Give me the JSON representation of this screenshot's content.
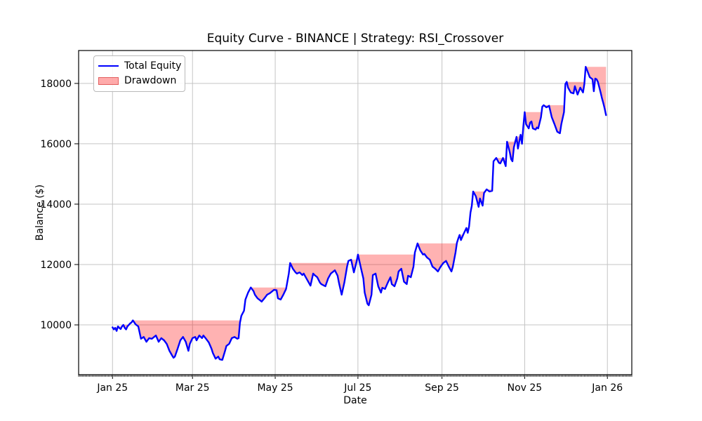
{
  "title": "Equity Curve - BINANCE | Strategy: RSI_Crossover",
  "legend": [
    {
      "label": "Total Equity",
      "type": "line",
      "color": "#0000ff"
    },
    {
      "label": "Drawdown",
      "type": "patch",
      "color": "rgba(255,0,0,0.33)"
    }
  ],
  "colors": {
    "equity_line": "#0000ff",
    "drawdown_fill": "rgba(255,0,0,0.3)",
    "grid": "#c4c4c4",
    "spine": "#000000",
    "text": "#000000"
  },
  "chart_data": {
    "type": "line",
    "title": "Equity Curve - BINANCE | Strategy: RSI_Crossover",
    "xlabel": "Date",
    "ylabel": "Balance ($)",
    "grid": true,
    "legend_position": "upper left",
    "x_unit": "days since Jan 1 2025",
    "xlim_days": [
      -25,
      383
    ],
    "ylim": [
      8350,
      19090
    ],
    "xticks": [
      {
        "day": 0,
        "label": "Jan 25"
      },
      {
        "day": 59,
        "label": "Mar 25"
      },
      {
        "day": 120,
        "label": "May 25"
      },
      {
        "day": 181,
        "label": "Jul 25"
      },
      {
        "day": 243,
        "label": "Sep 25"
      },
      {
        "day": 304,
        "label": "Nov 25"
      },
      {
        "day": 365,
        "label": "Jan 26"
      }
    ],
    "yticks": [
      10000,
      12000,
      14000,
      16000,
      18000
    ],
    "minor_xtick_every_days": 1,
    "series": [
      {
        "name": "Total Equity",
        "type": "line",
        "color": "#0000ff",
        "points": [
          [
            0,
            9920
          ],
          [
            1,
            9850
          ],
          [
            2,
            9900
          ],
          [
            3,
            9800
          ],
          [
            4,
            9950
          ],
          [
            5,
            9900
          ],
          [
            6,
            9860
          ],
          [
            7,
            9950
          ],
          [
            8,
            10000
          ],
          [
            9,
            9900
          ],
          [
            10,
            9850
          ],
          [
            11,
            9950
          ],
          [
            13,
            10050
          ],
          [
            14,
            10080
          ],
          [
            15,
            10150
          ],
          [
            17,
            10020
          ],
          [
            19,
            9950
          ],
          [
            21,
            9540
          ],
          [
            23,
            9600
          ],
          [
            25,
            9440
          ],
          [
            27,
            9560
          ],
          [
            29,
            9540
          ],
          [
            32,
            9650
          ],
          [
            34,
            9440
          ],
          [
            36,
            9560
          ],
          [
            38,
            9490
          ],
          [
            40,
            9370
          ],
          [
            42,
            9140
          ],
          [
            44,
            8980
          ],
          [
            45,
            8910
          ],
          [
            46,
            8950
          ],
          [
            48,
            9210
          ],
          [
            50,
            9490
          ],
          [
            52,
            9600
          ],
          [
            54,
            9440
          ],
          [
            56,
            9140
          ],
          [
            57,
            9370
          ],
          [
            59,
            9560
          ],
          [
            61,
            9600
          ],
          [
            62,
            9490
          ],
          [
            64,
            9650
          ],
          [
            66,
            9560
          ],
          [
            67,
            9650
          ],
          [
            69,
            9540
          ],
          [
            71,
            9420
          ],
          [
            73,
            9210
          ],
          [
            74,
            9070
          ],
          [
            76,
            8880
          ],
          [
            78,
            8950
          ],
          [
            79,
            8860
          ],
          [
            81,
            8840
          ],
          [
            83,
            9140
          ],
          [
            84,
            9300
          ],
          [
            86,
            9370
          ],
          [
            88,
            9560
          ],
          [
            90,
            9600
          ],
          [
            92,
            9540
          ],
          [
            93,
            9560
          ],
          [
            94,
            10070
          ],
          [
            95,
            10300
          ],
          [
            97,
            10470
          ],
          [
            98,
            10840
          ],
          [
            100,
            11070
          ],
          [
            102,
            11240
          ],
          [
            104,
            11120
          ],
          [
            105,
            11000
          ],
          [
            107,
            10880
          ],
          [
            109,
            10810
          ],
          [
            110,
            10770
          ],
          [
            112,
            10880
          ],
          [
            114,
            11000
          ],
          [
            116,
            11050
          ],
          [
            118,
            11120
          ],
          [
            119,
            11160
          ],
          [
            121,
            11150
          ],
          [
            122,
            10880
          ],
          [
            124,
            10840
          ],
          [
            126,
            11000
          ],
          [
            128,
            11190
          ],
          [
            130,
            11700
          ],
          [
            131,
            12050
          ],
          [
            133,
            11860
          ],
          [
            135,
            11740
          ],
          [
            136,
            11700
          ],
          [
            138,
            11740
          ],
          [
            140,
            11650
          ],
          [
            141,
            11700
          ],
          [
            143,
            11540
          ],
          [
            146,
            11300
          ],
          [
            148,
            11700
          ],
          [
            149,
            11650
          ],
          [
            151,
            11580
          ],
          [
            153,
            11400
          ],
          [
            154,
            11350
          ],
          [
            157,
            11280
          ],
          [
            159,
            11540
          ],
          [
            161,
            11700
          ],
          [
            164,
            11810
          ],
          [
            166,
            11630
          ],
          [
            167,
            11400
          ],
          [
            169,
            11000
          ],
          [
            171,
            11400
          ],
          [
            173,
            11930
          ],
          [
            174,
            12120
          ],
          [
            176,
            12160
          ],
          [
            178,
            11740
          ],
          [
            180,
            12090
          ],
          [
            181,
            12330
          ],
          [
            183,
            11930
          ],
          [
            185,
            11540
          ],
          [
            186,
            11070
          ],
          [
            188,
            10700
          ],
          [
            189,
            10650
          ],
          [
            191,
            11000
          ],
          [
            192,
            11650
          ],
          [
            194,
            11700
          ],
          [
            196,
            11280
          ],
          [
            198,
            11070
          ],
          [
            199,
            11230
          ],
          [
            201,
            11190
          ],
          [
            203,
            11400
          ],
          [
            205,
            11580
          ],
          [
            206,
            11350
          ],
          [
            208,
            11280
          ],
          [
            210,
            11540
          ],
          [
            211,
            11770
          ],
          [
            213,
            11860
          ],
          [
            215,
            11430
          ],
          [
            217,
            11350
          ],
          [
            218,
            11630
          ],
          [
            220,
            11580
          ],
          [
            222,
            11930
          ],
          [
            223,
            12400
          ],
          [
            225,
            12700
          ],
          [
            227,
            12470
          ],
          [
            229,
            12330
          ],
          [
            230,
            12350
          ],
          [
            232,
            12230
          ],
          [
            234,
            12160
          ],
          [
            236,
            11930
          ],
          [
            238,
            11860
          ],
          [
            240,
            11770
          ],
          [
            242,
            11930
          ],
          [
            244,
            12050
          ],
          [
            246,
            12120
          ],
          [
            248,
            11930
          ],
          [
            250,
            11770
          ],
          [
            251,
            11930
          ],
          [
            253,
            12400
          ],
          [
            254,
            12720
          ],
          [
            255,
            12860
          ],
          [
            256,
            12980
          ],
          [
            257,
            12810
          ],
          [
            259,
            13020
          ],
          [
            261,
            13210
          ],
          [
            262,
            13050
          ],
          [
            263,
            13260
          ],
          [
            264,
            13720
          ],
          [
            265,
            13950
          ],
          [
            266,
            14420
          ],
          [
            268,
            14260
          ],
          [
            270,
            13910
          ],
          [
            271,
            14190
          ],
          [
            273,
            13950
          ],
          [
            274,
            14370
          ],
          [
            276,
            14490
          ],
          [
            278,
            14420
          ],
          [
            280,
            14440
          ],
          [
            281,
            15420
          ],
          [
            283,
            15530
          ],
          [
            285,
            15370
          ],
          [
            286,
            15350
          ],
          [
            288,
            15530
          ],
          [
            290,
            15260
          ],
          [
            291,
            16070
          ],
          [
            293,
            15720
          ],
          [
            294,
            15490
          ],
          [
            295,
            15420
          ],
          [
            296,
            15880
          ],
          [
            298,
            16230
          ],
          [
            299,
            15840
          ],
          [
            301,
            16300
          ],
          [
            302,
            16000
          ],
          [
            303,
            16580
          ],
          [
            304,
            17050
          ],
          [
            305,
            16650
          ],
          [
            307,
            16510
          ],
          [
            308,
            16700
          ],
          [
            309,
            16740
          ],
          [
            310,
            16510
          ],
          [
            312,
            16470
          ],
          [
            313,
            16540
          ],
          [
            314,
            16510
          ],
          [
            316,
            16880
          ],
          [
            317,
            17230
          ],
          [
            318,
            17280
          ],
          [
            320,
            17210
          ],
          [
            321,
            17230
          ],
          [
            322,
            17260
          ],
          [
            324,
            16880
          ],
          [
            326,
            16650
          ],
          [
            328,
            16400
          ],
          [
            330,
            16350
          ],
          [
            331,
            16650
          ],
          [
            333,
            17050
          ],
          [
            334,
            17980
          ],
          [
            335,
            18050
          ],
          [
            336,
            17860
          ],
          [
            338,
            17700
          ],
          [
            340,
            17670
          ],
          [
            341,
            17910
          ],
          [
            343,
            17630
          ],
          [
            345,
            17860
          ],
          [
            347,
            17700
          ],
          [
            348,
            17980
          ],
          [
            349,
            18550
          ],
          [
            350,
            18440
          ],
          [
            352,
            18210
          ],
          [
            354,
            18140
          ],
          [
            355,
            17740
          ],
          [
            356,
            18160
          ],
          [
            357,
            18140
          ],
          [
            358,
            18050
          ],
          [
            360,
            17700
          ],
          [
            361,
            17510
          ],
          [
            362,
            17350
          ],
          [
            363,
            17160
          ],
          [
            364,
            16950
          ]
        ]
      },
      {
        "name": "Drawdown",
        "type": "area",
        "color": "rgba(255,0,0,0.3)",
        "description": "filled area between running maximum of equity and equity"
      }
    ]
  }
}
